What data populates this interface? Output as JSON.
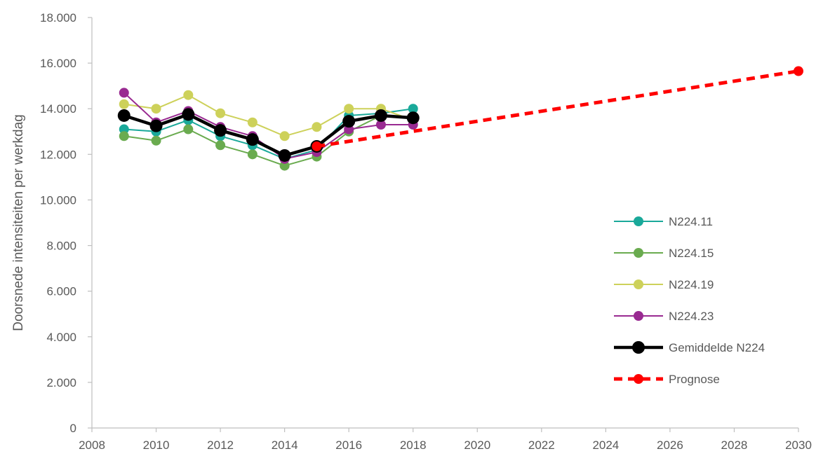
{
  "chart_data": {
    "type": "line",
    "title": "",
    "xlabel": "",
    "ylabel": "Doorsnede intensiteiten per werkdag",
    "xlim": [
      2008,
      2030
    ],
    "ylim": [
      0,
      18000
    ],
    "x_ticks": [
      2008,
      2010,
      2012,
      2014,
      2016,
      2018,
      2020,
      2022,
      2024,
      2026,
      2028,
      2030
    ],
    "x_tick_labels": [
      "2008",
      "2010",
      "2012",
      "2014",
      "2016",
      "2018",
      "2020",
      "2022",
      "2024",
      "2026",
      "2028",
      "2030"
    ],
    "y_ticks": [
      0,
      2000,
      4000,
      6000,
      8000,
      10000,
      12000,
      14000,
      16000,
      18000
    ],
    "y_tick_labels": [
      "0",
      "2.000",
      "4.000",
      "6.000",
      "8.000",
      "10.000",
      "12.000",
      "14.000",
      "16.000",
      "18.000"
    ],
    "grid": false,
    "legend_position": "right",
    "series": [
      {
        "name": "N224.11",
        "color": "#1aa99a",
        "line_style": "solid",
        "x": [
          2009,
          2010,
          2011,
          2012,
          2013,
          2014,
          2015,
          2016,
          2017,
          2018
        ],
        "values": [
          13100,
          13000,
          13500,
          12800,
          12400,
          11800,
          12200,
          13700,
          13800,
          14000
        ]
      },
      {
        "name": "N224.15",
        "color": "#6aab4f",
        "line_style": "solid",
        "x": [
          2009,
          2010,
          2011,
          2012,
          2013,
          2014,
          2015,
          2016,
          2017,
          2018
        ],
        "values": [
          12800,
          12600,
          13100,
          12400,
          12000,
          11500,
          11900,
          13000,
          13700,
          13600
        ]
      },
      {
        "name": "N224.19",
        "color": "#cdd15a",
        "line_style": "solid",
        "x": [
          2009,
          2010,
          2011,
          2012,
          2013,
          2014,
          2015,
          2016,
          2017,
          2018
        ],
        "values": [
          14200,
          14000,
          14600,
          13800,
          13400,
          12800,
          13200,
          14000,
          14000,
          13500
        ]
      },
      {
        "name": "N224.23",
        "color": "#992a91",
        "line_style": "solid",
        "x": [
          2009,
          2010,
          2011,
          2012,
          2013,
          2014,
          2015,
          2016,
          2017,
          2018
        ],
        "values": [
          14700,
          13400,
          13900,
          13200,
          12800,
          11800,
          12100,
          13100,
          13300,
          13300
        ]
      },
      {
        "name": "Gemiddelde N224",
        "color": "#000000",
        "line_style": "solid-thick",
        "x": [
          2009,
          2010,
          2011,
          2012,
          2013,
          2014,
          2015,
          2016,
          2017,
          2018
        ],
        "values": [
          13700,
          13250,
          13750,
          13050,
          12650,
          11950,
          12350,
          13450,
          13700,
          13600
        ]
      },
      {
        "name": "Prognose",
        "color": "#ff0000",
        "line_style": "dashed",
        "x": [
          2015,
          2030
        ],
        "values": [
          12350,
          15650
        ]
      }
    ]
  }
}
